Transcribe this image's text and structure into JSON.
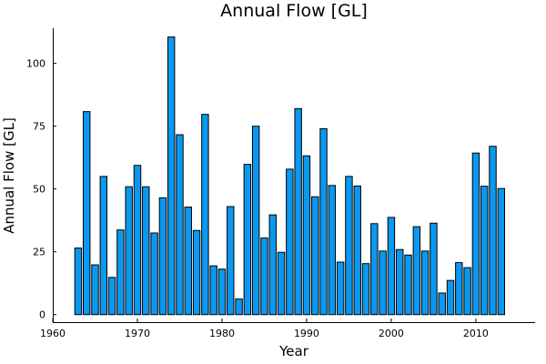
{
  "chart_data": {
    "type": "bar",
    "title": "Annual Flow [GL]",
    "xlabel": "Year",
    "ylabel": "Annual Flow [GL]",
    "xlim": [
      1960,
      2017
    ],
    "ylim": [
      -3,
      114
    ],
    "xticks": [
      1960,
      1970,
      1980,
      1990,
      2000,
      2010
    ],
    "yticks": [
      0,
      25,
      50,
      75,
      100
    ],
    "grid": false,
    "legend": "none",
    "bar_color": "#0a98f0",
    "x": [
      1963,
      1964,
      1965,
      1966,
      1967,
      1968,
      1969,
      1970,
      1971,
      1972,
      1973,
      1974,
      1975,
      1976,
      1977,
      1978,
      1979,
      1980,
      1981,
      1982,
      1983,
      1984,
      1985,
      1986,
      1987,
      1988,
      1989,
      1990,
      1991,
      1992,
      1993,
      1994,
      1995,
      1996,
      1997,
      1998,
      1999,
      2000,
      2001,
      2002,
      2003,
      2004,
      2005,
      2006,
      2007,
      2008,
      2009,
      2010,
      2011,
      2012,
      2013
    ],
    "values": [
      26.5,
      80.8,
      19.8,
      55.0,
      14.8,
      33.7,
      50.9,
      59.4,
      50.9,
      32.5,
      46.5,
      110.5,
      71.6,
      42.8,
      33.5,
      79.7,
      19.4,
      18.1,
      43.0,
      6.2,
      59.8,
      75.0,
      30.5,
      39.7,
      24.8,
      57.9,
      82.0,
      63.2,
      46.9,
      74.0,
      51.4,
      20.9,
      55.0,
      51.2,
      20.3,
      36.2,
      25.3,
      38.7,
      25.9,
      23.7,
      35.0,
      25.3,
      36.4,
      8.6,
      13.6,
      20.7,
      18.7,
      64.3,
      51.1,
      67.0,
      50.2
    ]
  }
}
